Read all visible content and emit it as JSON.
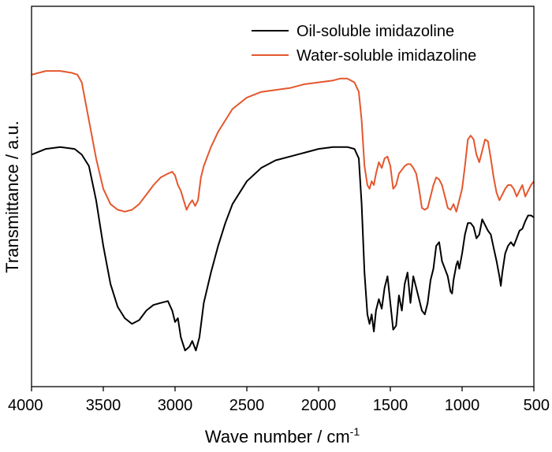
{
  "chart_data": {
    "type": "line",
    "title": "",
    "xlabel": "Wave number / cm",
    "xlabel_superscript": "-1",
    "ylabel": "Transmittance / a.u.",
    "xlim": [
      4000,
      500
    ],
    "ylim": [
      0,
      1
    ],
    "x_reversed": true,
    "y_ticks_shown": false,
    "x_ticks": [
      4000,
      3500,
      3000,
      2500,
      2000,
      1500,
      1000,
      500
    ],
    "grid": false,
    "legend_position": "top-right",
    "series": [
      {
        "name": "Oil-soluble imidazoline",
        "color": "#000000",
        "points": [
          [
            4000,
            0.61
          ],
          [
            3900,
            0.625
          ],
          [
            3800,
            0.63
          ],
          [
            3700,
            0.625
          ],
          [
            3650,
            0.61
          ],
          [
            3600,
            0.58
          ],
          [
            3550,
            0.49
          ],
          [
            3500,
            0.37
          ],
          [
            3450,
            0.27
          ],
          [
            3400,
            0.21
          ],
          [
            3350,
            0.18
          ],
          [
            3300,
            0.165
          ],
          [
            3250,
            0.175
          ],
          [
            3200,
            0.2
          ],
          [
            3150,
            0.215
          ],
          [
            3100,
            0.22
          ],
          [
            3050,
            0.225
          ],
          [
            3020,
            0.2
          ],
          [
            3000,
            0.17
          ],
          [
            2980,
            0.18
          ],
          [
            2960,
            0.13
          ],
          [
            2930,
            0.095
          ],
          [
            2900,
            0.105
          ],
          [
            2880,
            0.12
          ],
          [
            2855,
            0.095
          ],
          [
            2830,
            0.13
          ],
          [
            2800,
            0.22
          ],
          [
            2750,
            0.3
          ],
          [
            2700,
            0.37
          ],
          [
            2650,
            0.43
          ],
          [
            2600,
            0.48
          ],
          [
            2500,
            0.54
          ],
          [
            2400,
            0.575
          ],
          [
            2300,
            0.595
          ],
          [
            2200,
            0.605
          ],
          [
            2100,
            0.615
          ],
          [
            2000,
            0.625
          ],
          [
            1900,
            0.63
          ],
          [
            1800,
            0.63
          ],
          [
            1750,
            0.625
          ],
          [
            1720,
            0.6
          ],
          [
            1700,
            0.48
          ],
          [
            1680,
            0.3
          ],
          [
            1660,
            0.19
          ],
          [
            1645,
            0.165
          ],
          [
            1630,
            0.19
          ],
          [
            1615,
            0.145
          ],
          [
            1600,
            0.2
          ],
          [
            1580,
            0.23
          ],
          [
            1560,
            0.205
          ],
          [
            1540,
            0.26
          ],
          [
            1520,
            0.29
          ],
          [
            1500,
            0.22
          ],
          [
            1480,
            0.15
          ],
          [
            1460,
            0.16
          ],
          [
            1440,
            0.24
          ],
          [
            1420,
            0.2
          ],
          [
            1400,
            0.27
          ],
          [
            1380,
            0.3
          ],
          [
            1360,
            0.22
          ],
          [
            1340,
            0.29
          ],
          [
            1320,
            0.26
          ],
          [
            1300,
            0.23
          ],
          [
            1280,
            0.2
          ],
          [
            1260,
            0.19
          ],
          [
            1240,
            0.22
          ],
          [
            1220,
            0.28
          ],
          [
            1200,
            0.31
          ],
          [
            1180,
            0.37
          ],
          [
            1160,
            0.38
          ],
          [
            1140,
            0.33
          ],
          [
            1120,
            0.31
          ],
          [
            1100,
            0.29
          ],
          [
            1080,
            0.25
          ],
          [
            1070,
            0.245
          ],
          [
            1060,
            0.28
          ],
          [
            1040,
            0.32
          ],
          [
            1030,
            0.33
          ],
          [
            1020,
            0.31
          ],
          [
            1000,
            0.35
          ],
          [
            980,
            0.4
          ],
          [
            960,
            0.43
          ],
          [
            940,
            0.43
          ],
          [
            920,
            0.42
          ],
          [
            900,
            0.39
          ],
          [
            880,
            0.4
          ],
          [
            860,
            0.44
          ],
          [
            840,
            0.425
          ],
          [
            820,
            0.41
          ],
          [
            800,
            0.4
          ],
          [
            780,
            0.365
          ],
          [
            760,
            0.33
          ],
          [
            740,
            0.29
          ],
          [
            730,
            0.265
          ],
          [
            720,
            0.3
          ],
          [
            700,
            0.35
          ],
          [
            680,
            0.37
          ],
          [
            660,
            0.38
          ],
          [
            640,
            0.37
          ],
          [
            620,
            0.39
          ],
          [
            600,
            0.41
          ],
          [
            580,
            0.415
          ],
          [
            560,
            0.435
          ],
          [
            540,
            0.45
          ],
          [
            520,
            0.45
          ],
          [
            500,
            0.445
          ]
        ]
      },
      {
        "name": "Water-soluble imidazoline",
        "color": "#E4572E",
        "points": [
          [
            4000,
            0.82
          ],
          [
            3900,
            0.83
          ],
          [
            3800,
            0.83
          ],
          [
            3720,
            0.825
          ],
          [
            3680,
            0.82
          ],
          [
            3650,
            0.8
          ],
          [
            3600,
            0.7
          ],
          [
            3550,
            0.6
          ],
          [
            3500,
            0.52
          ],
          [
            3450,
            0.48
          ],
          [
            3400,
            0.465
          ],
          [
            3350,
            0.46
          ],
          [
            3300,
            0.465
          ],
          [
            3250,
            0.48
          ],
          [
            3200,
            0.505
          ],
          [
            3150,
            0.53
          ],
          [
            3100,
            0.55
          ],
          [
            3050,
            0.56
          ],
          [
            3020,
            0.565
          ],
          [
            3000,
            0.555
          ],
          [
            2980,
            0.53
          ],
          [
            2960,
            0.515
          ],
          [
            2940,
            0.49
          ],
          [
            2920,
            0.465
          ],
          [
            2900,
            0.48
          ],
          [
            2880,
            0.49
          ],
          [
            2860,
            0.475
          ],
          [
            2840,
            0.49
          ],
          [
            2820,
            0.55
          ],
          [
            2800,
            0.58
          ],
          [
            2750,
            0.63
          ],
          [
            2700,
            0.67
          ],
          [
            2650,
            0.7
          ],
          [
            2600,
            0.73
          ],
          [
            2500,
            0.76
          ],
          [
            2400,
            0.775
          ],
          [
            2300,
            0.78
          ],
          [
            2200,
            0.785
          ],
          [
            2100,
            0.795
          ],
          [
            2000,
            0.8
          ],
          [
            1900,
            0.805
          ],
          [
            1850,
            0.81
          ],
          [
            1800,
            0.81
          ],
          [
            1750,
            0.8
          ],
          [
            1720,
            0.775
          ],
          [
            1700,
            0.7
          ],
          [
            1680,
            0.58
          ],
          [
            1660,
            0.53
          ],
          [
            1645,
            0.52
          ],
          [
            1630,
            0.54
          ],
          [
            1615,
            0.53
          ],
          [
            1600,
            0.56
          ],
          [
            1580,
            0.59
          ],
          [
            1560,
            0.575
          ],
          [
            1540,
            0.6
          ],
          [
            1520,
            0.605
          ],
          [
            1500,
            0.58
          ],
          [
            1480,
            0.52
          ],
          [
            1460,
            0.53
          ],
          [
            1440,
            0.56
          ],
          [
            1420,
            0.57
          ],
          [
            1400,
            0.58
          ],
          [
            1380,
            0.585
          ],
          [
            1360,
            0.585
          ],
          [
            1340,
            0.575
          ],
          [
            1320,
            0.56
          ],
          [
            1300,
            0.52
          ],
          [
            1280,
            0.47
          ],
          [
            1260,
            0.465
          ],
          [
            1240,
            0.47
          ],
          [
            1220,
            0.5
          ],
          [
            1200,
            0.53
          ],
          [
            1180,
            0.55
          ],
          [
            1160,
            0.545
          ],
          [
            1140,
            0.53
          ],
          [
            1120,
            0.5
          ],
          [
            1100,
            0.47
          ],
          [
            1080,
            0.465
          ],
          [
            1060,
            0.48
          ],
          [
            1040,
            0.46
          ],
          [
            1020,
            0.49
          ],
          [
            1000,
            0.52
          ],
          [
            980,
            0.58
          ],
          [
            960,
            0.65
          ],
          [
            940,
            0.66
          ],
          [
            920,
            0.65
          ],
          [
            900,
            0.61
          ],
          [
            880,
            0.59
          ],
          [
            860,
            0.62
          ],
          [
            840,
            0.65
          ],
          [
            820,
            0.645
          ],
          [
            800,
            0.6
          ],
          [
            780,
            0.55
          ],
          [
            760,
            0.51
          ],
          [
            740,
            0.49
          ],
          [
            720,
            0.505
          ],
          [
            700,
            0.52
          ],
          [
            680,
            0.53
          ],
          [
            660,
            0.53
          ],
          [
            640,
            0.52
          ],
          [
            620,
            0.5
          ],
          [
            600,
            0.515
          ],
          [
            580,
            0.53
          ],
          [
            560,
            0.5
          ],
          [
            540,
            0.515
          ],
          [
            520,
            0.53
          ],
          [
            500,
            0.54
          ]
        ]
      }
    ]
  }
}
